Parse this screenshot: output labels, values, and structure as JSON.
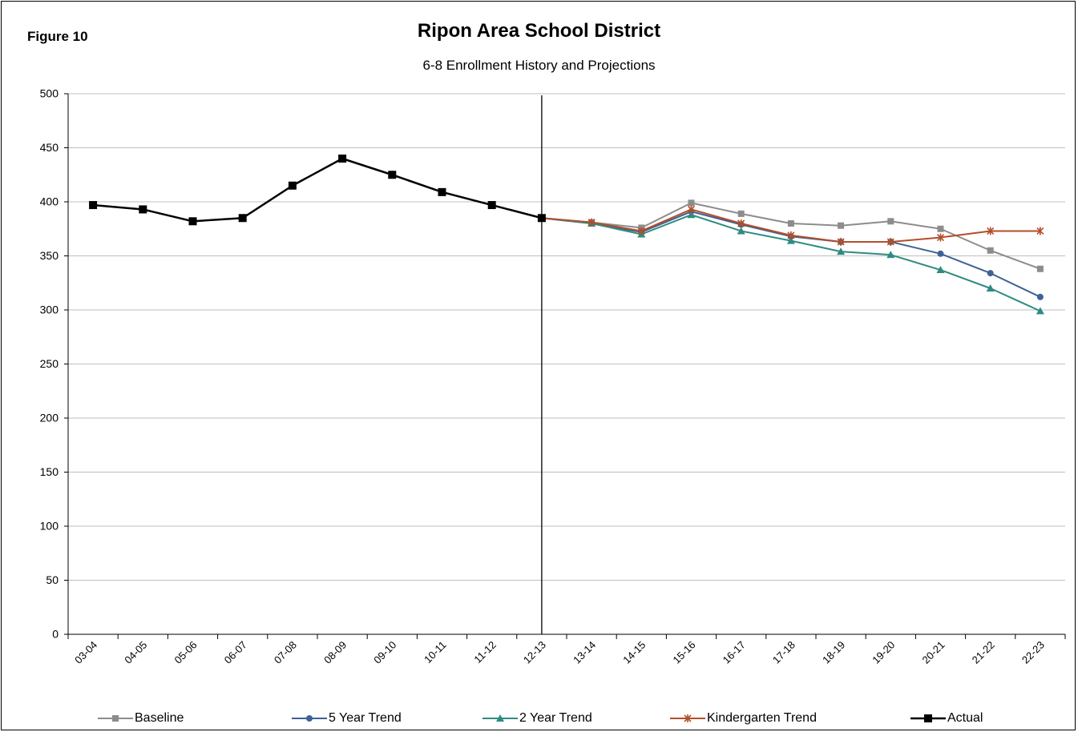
{
  "figure_label": "Figure 10",
  "chart_data": {
    "type": "line",
    "title": "Ripon Area School District",
    "subtitle": "6-8 Enrollment History and Projections",
    "xlabel": "",
    "ylabel": "",
    "ylim": [
      0,
      500
    ],
    "yticks": [
      0,
      50,
      100,
      150,
      200,
      250,
      300,
      350,
      400,
      450,
      500
    ],
    "grid": "horizontal",
    "legend_position": "bottom",
    "divider_at": "12-13",
    "categories": [
      "03-04",
      "04-05",
      "05-06",
      "06-07",
      "07-08",
      "08-09",
      "09-10",
      "10-11",
      "11-12",
      "12-13",
      "13-14",
      "14-15",
      "15-16",
      "16-17",
      "17-18",
      "18-19",
      "19-20",
      "20-21",
      "21-22",
      "22-23"
    ],
    "series": [
      {
        "name": "Baseline",
        "color": "#8c8c8c",
        "marker": "square",
        "values": [
          null,
          null,
          null,
          null,
          null,
          null,
          null,
          null,
          null,
          385,
          381,
          376,
          399,
          389,
          380,
          378,
          382,
          375,
          355,
          338
        ]
      },
      {
        "name": "5 Year Trend",
        "color": "#3e6295",
        "marker": "circle",
        "values": [
          null,
          null,
          null,
          null,
          null,
          null,
          null,
          null,
          null,
          385,
          380,
          372,
          391,
          379,
          368,
          363,
          363,
          352,
          334,
          312
        ]
      },
      {
        "name": "2 Year Trend",
        "color": "#2e8b82",
        "marker": "triangle",
        "values": [
          null,
          null,
          null,
          null,
          null,
          null,
          null,
          null,
          null,
          385,
          380,
          370,
          388,
          373,
          364,
          354,
          351,
          337,
          320,
          299
        ]
      },
      {
        "name": "Kindergarten Trend",
        "color": "#b24e2a",
        "marker": "star",
        "values": [
          null,
          null,
          null,
          null,
          null,
          null,
          null,
          null,
          null,
          385,
          381,
          373,
          393,
          380,
          369,
          363,
          363,
          367,
          373,
          373
        ]
      },
      {
        "name": "Actual",
        "color": "#000000",
        "marker": "square-large",
        "values": [
          397,
          393,
          382,
          385,
          415,
          440,
          425,
          409,
          397,
          385,
          null,
          null,
          null,
          null,
          null,
          null,
          null,
          null,
          null,
          null
        ]
      }
    ]
  }
}
